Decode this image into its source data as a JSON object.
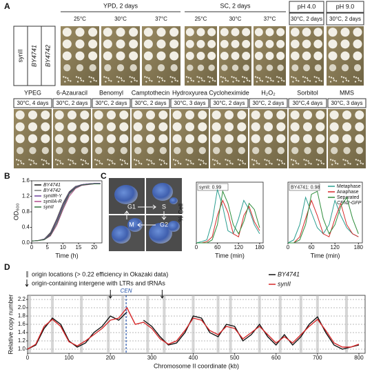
{
  "panel_labels": [
    "A",
    "B",
    "C",
    "D"
  ],
  "panel_a": {
    "strains": [
      "synII",
      "BY4741",
      "BY4742"
    ],
    "row1": [
      {
        "condition": "YPD, 2 days",
        "plates": [
          "25°C",
          "30°C",
          "37°C"
        ]
      },
      {
        "condition": "SC, 2 days",
        "plates": [
          "25°C",
          "30°C",
          "37°C"
        ]
      },
      {
        "condition": "pH 4.0",
        "plates": [
          "30°C, 2 days"
        ]
      },
      {
        "condition": "pH 9.0",
        "plates": [
          "30°C, 2 days"
        ]
      }
    ],
    "row2": [
      {
        "condition": "YPEG",
        "plates": [
          "30°C, 4 days"
        ]
      },
      {
        "condition": "6-Azauracil",
        "plates": [
          "30°C, 2 days"
        ]
      },
      {
        "condition": "Benomyl",
        "plates": [
          "30°C, 2 days"
        ]
      },
      {
        "condition": "Camptothecin",
        "plates": [
          "30°C, 2 days"
        ]
      },
      {
        "condition": "Hydroxyurea",
        "plates": [
          "30°C, 3 days"
        ]
      },
      {
        "condition": "Cycloheximide",
        "plates": [
          "30°C, 2 days"
        ]
      },
      {
        "condition": "H₂O₂",
        "plates": [
          "30°C, 2 days"
        ]
      },
      {
        "condition": "Sorbitol",
        "plates": [
          "30°C,4 days"
        ]
      },
      {
        "condition": "MMS",
        "plates": [
          "30°C, 3 days"
        ]
      }
    ]
  },
  "panel_c_phases": [
    "G1",
    "S",
    "M",
    "G2"
  ],
  "chart_data": [
    {
      "type": "line",
      "xlabel": "Time (h)",
      "ylabel": "OD₆₀₀",
      "x": [
        0,
        2,
        4,
        6,
        8,
        10,
        12,
        14,
        16,
        18,
        20,
        22
      ],
      "xlim": [
        0,
        22.5
      ],
      "xticks": [
        0,
        5,
        10,
        15,
        20
      ],
      "ylim": [
        0,
        1.6
      ],
      "yticks": [
        {
          "value": 0,
          "label": "0.0"
        },
        0.4,
        0.8,
        1.2,
        1.6
      ],
      "legend": "upper left",
      "series": [
        {
          "name": "BY4741",
          "color": "#111111",
          "values": [
            0.05,
            0.06,
            0.1,
            0.25,
            0.6,
            1.0,
            1.3,
            1.45,
            1.5,
            1.52,
            1.53,
            1.53
          ]
        },
        {
          "name": "BY4742",
          "color": "#777777",
          "values": [
            0.05,
            0.06,
            0.1,
            0.27,
            0.62,
            1.02,
            1.32,
            1.46,
            1.5,
            1.52,
            1.53,
            1.53
          ]
        },
        {
          "name": "synIIR-Y",
          "color": "#6a3d9a",
          "values": [
            0.05,
            0.06,
            0.09,
            0.22,
            0.55,
            0.95,
            1.28,
            1.44,
            1.5,
            1.52,
            1.53,
            1.53
          ]
        },
        {
          "name": "synIIA-R",
          "color": "#b04a8a",
          "values": [
            0.05,
            0.06,
            0.08,
            0.18,
            0.45,
            0.85,
            1.2,
            1.4,
            1.48,
            1.5,
            1.52,
            1.52
          ]
        },
        {
          "name": "synII",
          "color": "#2f6f3a",
          "values": [
            0.05,
            0.06,
            0.08,
            0.2,
            0.5,
            0.9,
            1.25,
            1.42,
            1.49,
            1.51,
            1.52,
            1.52
          ]
        }
      ]
    },
    {
      "type": "line",
      "annotation": "synII: 0.99",
      "xlabel": "Time (min)",
      "ylabel": "% Cell",
      "x": [
        0,
        15,
        30,
        45,
        60,
        75,
        90,
        105,
        120,
        135,
        150,
        165,
        180
      ],
      "xlim": [
        0,
        190
      ],
      "xticks": [
        0,
        60,
        120,
        180
      ],
      "ylim": [
        0,
        100
      ],
      "series": [
        {
          "color": "#2a9d8f",
          "values": [
            0,
            2,
            5,
            35,
            88,
            60,
            20,
            15,
            40,
            70,
            55,
            30,
            15
          ]
        },
        {
          "color": "#d62728",
          "values": [
            0,
            0,
            2,
            10,
            45,
            70,
            50,
            15,
            10,
            45,
            60,
            35,
            20
          ]
        },
        {
          "color": "#2c8c3a",
          "values": [
            0,
            0,
            0,
            5,
            30,
            85,
            65,
            30,
            15,
            35,
            65,
            55,
            25
          ]
        }
      ]
    },
    {
      "type": "line",
      "annotation": "BY4741: 0.98",
      "xlabel": "Time (min)",
      "x": [
        0,
        15,
        30,
        45,
        60,
        75,
        90,
        105,
        120,
        135,
        150,
        165,
        180
      ],
      "xlim": [
        0,
        190
      ],
      "xticks": [
        0,
        60,
        120,
        180
      ],
      "ylim": [
        0,
        100
      ],
      "legend": "upper right",
      "legend_note": "CEN2-GFP",
      "series": [
        {
          "name": "Metaphase",
          "color": "#2a9d8f",
          "values": [
            0,
            5,
            30,
            75,
            50,
            25,
            15,
            30,
            70,
            45,
            25,
            15,
            10
          ]
        },
        {
          "name": "Anaphase",
          "color": "#d62728",
          "values": [
            0,
            0,
            10,
            40,
            70,
            45,
            15,
            10,
            40,
            65,
            30,
            15,
            10
          ]
        },
        {
          "name": "Separated",
          "color": "#2c8c3a",
          "values": [
            0,
            0,
            5,
            30,
            80,
            85,
            40,
            15,
            30,
            60,
            75,
            40,
            15
          ]
        }
      ]
    },
    {
      "type": "line",
      "xlabel": "Chromosome II coordinate (kb)",
      "ylabel": "Relative copy number",
      "x": [
        0,
        20,
        40,
        60,
        80,
        100,
        120,
        140,
        160,
        180,
        200,
        220,
        240,
        260,
        280,
        300,
        320,
        340,
        360,
        380,
        400,
        420,
        440,
        460,
        480,
        500,
        520,
        540,
        560,
        580,
        600,
        620,
        640,
        660,
        680,
        700,
        720,
        740,
        760,
        780,
        800
      ],
      "xlim": [
        0,
        815
      ],
      "xticks": [
        0,
        100,
        200,
        300,
        400,
        500,
        600,
        700,
        800
      ],
      "ylim": [
        0.9,
        2.3
      ],
      "yticks": [
        {
          "value": 1,
          "label": "1.0"
        },
        1.2,
        1.4,
        1.6,
        1.8,
        {
          "value": 2,
          "label": "2.0"
        },
        2.2
      ],
      "grid": true,
      "legend": "above right",
      "series": [
        {
          "name": "BY4741",
          "color": "#111111",
          "values": [
            1.0,
            1.1,
            1.5,
            1.75,
            1.6,
            1.2,
            1.05,
            1.15,
            1.4,
            1.55,
            1.8,
            1.7,
            1.9,
            null,
            1.7,
            1.55,
            1.3,
            1.1,
            1.15,
            1.4,
            1.8,
            1.75,
            1.4,
            1.3,
            1.6,
            1.55,
            1.2,
            1.35,
            1.6,
            1.3,
            1.1,
            1.35,
            1.1,
            1.3,
            1.6,
            1.78,
            1.4,
            1.1,
            1.0,
            1.05,
            1.1
          ]
        },
        {
          "name": "synII",
          "color": "#d62728",
          "values": [
            1.0,
            1.12,
            1.55,
            1.72,
            1.55,
            1.18,
            1.08,
            1.2,
            1.35,
            1.5,
            1.7,
            1.75,
            2.0,
            1.6,
            1.65,
            1.5,
            1.25,
            1.12,
            1.2,
            1.45,
            1.75,
            1.7,
            1.45,
            1.35,
            1.55,
            1.5,
            1.25,
            1.4,
            1.55,
            1.35,
            1.15,
            1.3,
            1.15,
            1.35,
            1.55,
            1.72,
            1.45,
            1.15,
            1.05,
            1.05,
            1.12
          ]
        }
      ],
      "origin_legend": "origin locations (> 0.22 efficiency in Okazaki data)",
      "origins": [
        5,
        60,
        130,
        195,
        230,
        290,
        330,
        400,
        460,
        490,
        560,
        610,
        660,
        700,
        770
      ],
      "ltr_legend": "origin-containing intergene with LTRs and tRNAs",
      "ltr_intergenes": [
        200,
        325
      ],
      "cen": {
        "label": "CEN",
        "position": 238
      }
    }
  ]
}
